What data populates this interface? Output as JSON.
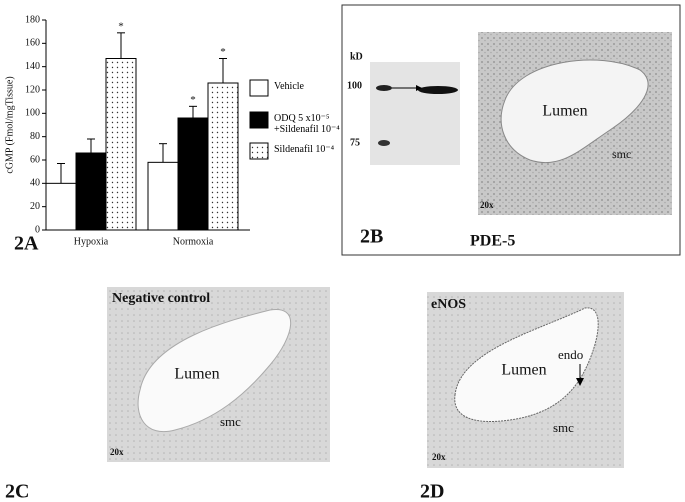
{
  "chart_data": {
    "type": "bar",
    "panel": "2A",
    "y_label": "cGMP (Fmol/mgTissue)",
    "categories": [
      "Hypoxia",
      "Normoxia"
    ],
    "series": [
      {
        "name": "Vehicle",
        "color": "#ffffff",
        "values": [
          40,
          58
        ],
        "errors": [
          17,
          16
        ],
        "stars": [
          null,
          null
        ]
      },
      {
        "name": "ODQ 5 x10⁻⁵ +Sildenafil 10⁻⁴",
        "color": "#000000",
        "values": [
          66,
          96
        ],
        "errors": [
          12,
          10
        ],
        "stars": [
          null,
          "*"
        ]
      },
      {
        "name": "Sildenafil 10⁻⁴",
        "color": "#ffffff",
        "pattern": "dots",
        "values": [
          147,
          126
        ],
        "errors": [
          22,
          21
        ],
        "stars": [
          "*",
          "*"
        ]
      }
    ],
    "ylim": [
      0,
      180
    ],
    "yticks": [
      0,
      20,
      40,
      60,
      80,
      100,
      120,
      140,
      160,
      180
    ]
  },
  "panel_b": {
    "label": "2B",
    "kd": "kD",
    "markers": [
      "100",
      "75"
    ],
    "caption": "PDE-5",
    "lumen": "Lumen",
    "smc": "smc",
    "magnification": "20x"
  },
  "panel_c": {
    "label": "2C",
    "title": "Negative control",
    "lumen": "Lumen",
    "smc": "smc",
    "magnification": "20x"
  },
  "panel_d": {
    "label": "2D",
    "title": "eNOS",
    "endo": "endo",
    "lumen": "Lumen",
    "smc": "smc",
    "magnification": "20x"
  }
}
